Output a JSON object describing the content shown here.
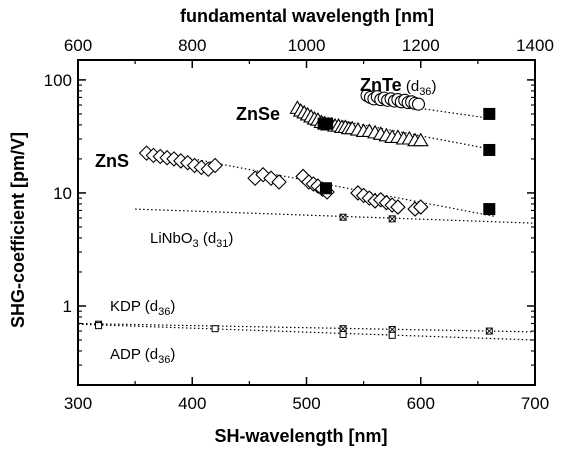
{
  "chart_data": {
    "type": "scatter",
    "title": "",
    "xlabel": "SH-wavelength [nm]",
    "xlabel_top": "fundamental wavelength [nm]",
    "ylabel": "SHG-coefficient  [pm/V]",
    "xlim": [
      300,
      700
    ],
    "xlim_top": [
      600,
      1400
    ],
    "ylim": [
      0.2,
      150
    ],
    "y_scale": "log",
    "x_ticks": [
      300,
      400,
      500,
      600,
      700
    ],
    "x_tick_labels": [
      "300",
      "400",
      "500",
      "600",
      "700"
    ],
    "x_ticks_top": [
      600,
      800,
      1000,
      1200,
      1400
    ],
    "x_tick_labels_top": [
      "600",
      "800",
      "1000",
      "1200",
      "1400"
    ],
    "y_ticks": [
      1,
      10,
      100
    ],
    "y_tick_labels": [
      "1",
      "10",
      "100"
    ],
    "grid": false,
    "legend": "none",
    "series": [
      {
        "name": "ZnTe",
        "label_main": "ZnTe",
        "label_paren": "(d",
        "label_sub": "36",
        "label_close": ")",
        "marker": "circle",
        "x": [
          553,
          556,
          559,
          562,
          565,
          568,
          571,
          574,
          577,
          580,
          583,
          586,
          589,
          592,
          595,
          598
        ],
        "y": [
          73,
          70,
          68,
          71,
          67,
          69,
          66,
          68,
          65,
          67,
          64,
          66,
          63,
          64,
          62,
          61
        ],
        "fit_x": [
          555,
          665
        ],
        "fit_y": [
          65,
          45
        ],
        "ref_x": [
          660
        ],
        "ref_y": [
          50
        ]
      },
      {
        "name": "ZnSe",
        "label_main": "ZnSe",
        "marker": "triangle",
        "x": [
          492,
          495,
          498,
          501,
          504,
          507,
          510,
          513,
          516,
          519,
          522,
          525,
          528,
          531,
          534,
          537,
          540,
          545,
          550,
          555,
          560,
          565,
          570,
          575,
          580,
          585,
          590,
          595,
          600
        ],
        "y": [
          56,
          53,
          51,
          49,
          47,
          45,
          44,
          42,
          41,
          40,
          40,
          39,
          39,
          38,
          38,
          37,
          37,
          36,
          35,
          35,
          34,
          33,
          32,
          31,
          31,
          30,
          30,
          29,
          29
        ],
        "fit_x": [
          490,
          665
        ],
        "fit_y": [
          52,
          24
        ],
        "ref_x": [
          515,
          518,
          660
        ],
        "ref_y": [
          41,
          41,
          24
        ]
      },
      {
        "name": "ZnS",
        "label_main": "ZnS",
        "marker": "diamond",
        "x": [
          360,
          366,
          372,
          378,
          384,
          390,
          396,
          402,
          408,
          414,
          420,
          455,
          462,
          469,
          476,
          497,
          502,
          506,
          510,
          514,
          518,
          545,
          550,
          555,
          560,
          565,
          570,
          575,
          580,
          595,
          600
        ],
        "y": [
          22.5,
          21.5,
          21,
          20.5,
          20,
          19.2,
          18.5,
          17.5,
          16.8,
          16.2,
          17.5,
          13.5,
          14.5,
          13.5,
          12.5,
          14,
          12.5,
          12,
          11.5,
          10.8,
          10.2,
          10,
          9.5,
          9,
          8.5,
          8.7,
          8.2,
          7.8,
          7.5,
          7.2,
          7.5
        ],
        "fit_x": [
          360,
          665
        ],
        "fit_y": [
          24,
          6.2
        ],
        "ref_x": [
          517,
          660
        ],
        "ref_y": [
          11,
          7.2
        ]
      },
      {
        "name": "LiNbO3",
        "label_main": "LiNbO",
        "label_sub1": "3",
        "label_paren": "(d",
        "label_sub": "31",
        "label_close": ")",
        "marker": "square-x",
        "x": [
          532,
          575
        ],
        "y": [
          6.1,
          5.9
        ],
        "fit_x": [
          350,
          700
        ],
        "fit_y": [
          7.2,
          5.4
        ]
      },
      {
        "name": "KDP",
        "label_main": "KDP",
        "label_paren": "(d",
        "label_sub": "36",
        "label_close": ")",
        "marker": "square-x",
        "x": [
          318,
          532,
          575,
          660
        ],
        "y": [
          0.69,
          0.63,
          0.62,
          0.6
        ],
        "fit_x": [
          300,
          700
        ],
        "fit_y": [
          0.7,
          0.59
        ]
      },
      {
        "name": "ADP",
        "label_main": "ADP",
        "label_paren": "(d",
        "label_sub": "36",
        "label_close": ")",
        "marker": "square",
        "x": [
          318,
          420,
          532,
          575
        ],
        "y": [
          0.67,
          0.63,
          0.56,
          0.55
        ],
        "fit_x": [
          300,
          700
        ],
        "fit_y": [
          0.69,
          0.5
        ]
      }
    ]
  }
}
